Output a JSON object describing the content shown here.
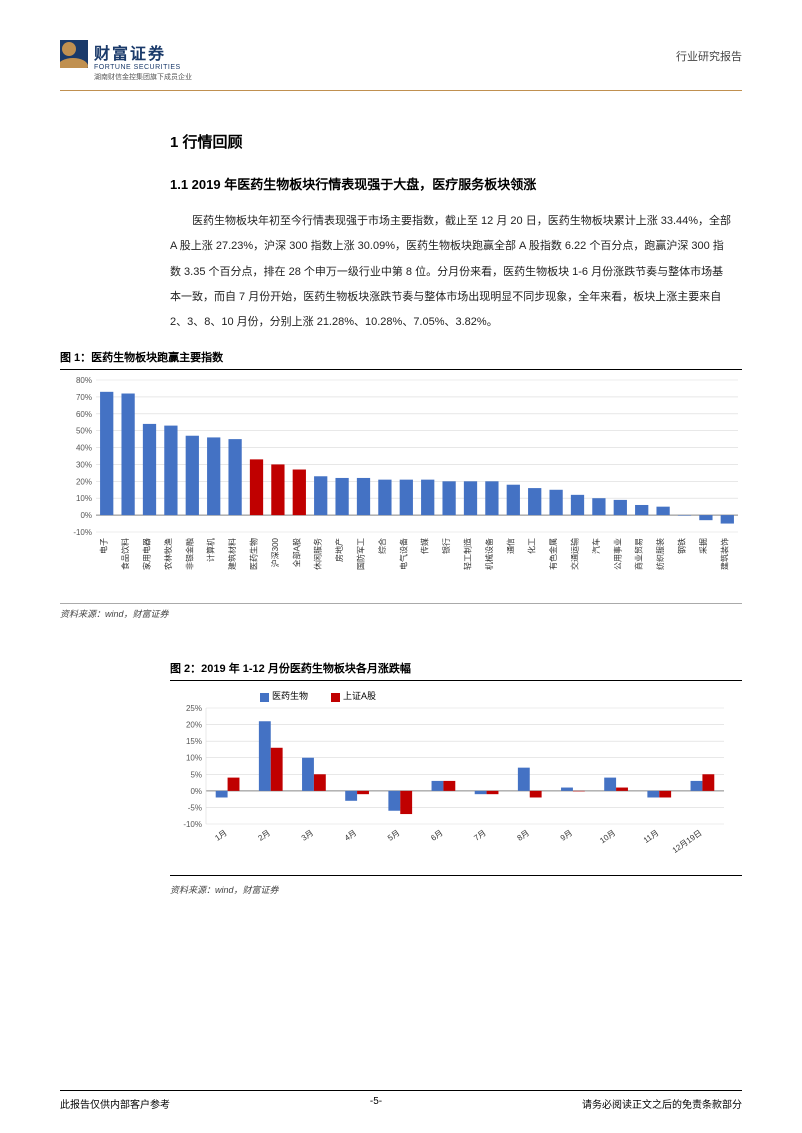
{
  "header": {
    "logo_cn": "财富证券",
    "logo_en": "FORTUNE SECURITIES",
    "logo_sub": "湖南财信金控集团旗下成员企业",
    "right_label": "行业研究报告"
  },
  "section": {
    "title": "1 行情回顾",
    "sub_title": "1.1 2019 年医药生物板块行情表现强于大盘，医疗服务板块领涨",
    "paragraph": "医药生物板块年初至今行情表现强于市场主要指数，截止至 12 月 20 日，医药生物板块累计上涨 33.44%，全部 A 股上涨 27.23%，沪深 300 指数上涨 30.09%，医药生物板块跑赢全部 A 股指数 6.22 个百分点，跑赢沪深 300 指数 3.35 个百分点，排在 28 个申万一级行业中第 8 位。分月份来看，医药生物板块 1-6 月份涨跌节奏与整体市场基本一致，而自 7 月份开始，医药生物板块涨跌节奏与整体市场出现明显不同步现象，全年来看，板块上涨主要来自 2、3、8、10 月份，分别上涨 21.28%、10.28%、7.05%、3.82%。"
  },
  "chart1": {
    "title": "图 1：医药生物板块跑赢主要指数",
    "type": "bar",
    "y_label_suffix": "%",
    "ylim": [
      -10,
      80
    ],
    "ytick_step": 10,
    "grid_color": "#d9d9d9",
    "axis_color": "#888888",
    "label_fontsize": 9,
    "tick_fontsize": 8,
    "bar_color_default": "#4472c4",
    "bar_color_highlight": "#c00000",
    "categories": [
      "电子",
      "食品饮料",
      "家用电器",
      "农林牧渔",
      "非银金融",
      "计算机",
      "建筑材料",
      "医药生物",
      "沪深300",
      "全部A股",
      "休闲服务",
      "房地产",
      "国防军工",
      "综合",
      "电气设备",
      "传媒",
      "银行",
      "轻工制造",
      "机械设备",
      "通信",
      "化工",
      "有色金属",
      "交通运输",
      "汽车",
      "公用事业",
      "商业贸易",
      "纺织服装",
      "钢铁",
      "采掘",
      "建筑装饰"
    ],
    "values": [
      73,
      72,
      54,
      53,
      47,
      46,
      45,
      33,
      30,
      27,
      23,
      22,
      22,
      21,
      21,
      21,
      20,
      20,
      20,
      18,
      16,
      15,
      12,
      10,
      9,
      6,
      5,
      0,
      -3,
      -5
    ],
    "highlight_idx": [
      7,
      8,
      9
    ],
    "source": "资料来源：wind，财富证券"
  },
  "chart2": {
    "title": "图 2：2019 年 1-12 月份医药生物板块各月涨跌幅",
    "type": "grouped-bar",
    "y_label_suffix": "%",
    "ylim": [
      -10,
      25
    ],
    "ytick_step": 5,
    "grid_color": "#d9d9d9",
    "axis_color": "#888888",
    "label_fontsize": 9,
    "tick_fontsize": 8,
    "legend": [
      {
        "label": "医药生物",
        "color": "#4472c4"
      },
      {
        "label": "上证A股",
        "color": "#c00000"
      }
    ],
    "categories": [
      "1月",
      "2月",
      "3月",
      "4月",
      "5月",
      "6月",
      "7月",
      "8月",
      "9月",
      "10月",
      "11月",
      "12月19日"
    ],
    "series1": [
      -2,
      21,
      10,
      -3,
      -6,
      3,
      -1,
      7,
      1,
      4,
      -2,
      3
    ],
    "series2": [
      4,
      13,
      5,
      -1,
      -7,
      3,
      -1,
      -2,
      0,
      1,
      -2,
      5
    ],
    "source": "资料来源：wind，财富证券"
  },
  "footer": {
    "left": "此报告仅供内部客户参考",
    "center": "-5-",
    "right": "请务必阅读正文之后的免责条款部分"
  }
}
